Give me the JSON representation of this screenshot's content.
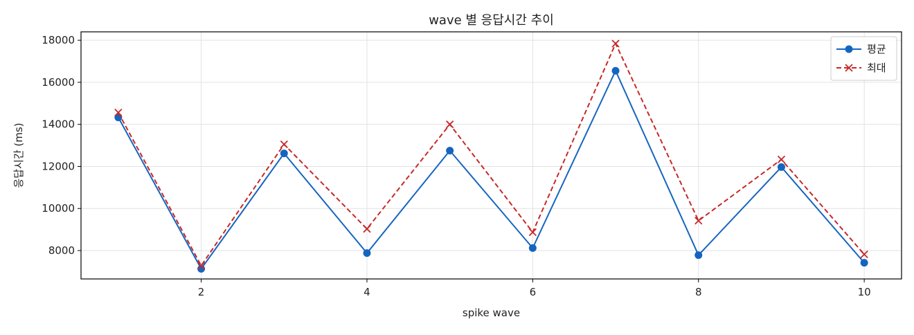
{
  "chart_data": {
    "type": "line",
    "title": "wave 별 응답시간 추이",
    "xlabel": "spike wave",
    "ylabel": "응답시간 (ms)",
    "x": [
      1,
      2,
      3,
      4,
      5,
      6,
      7,
      8,
      9,
      10
    ],
    "xlim": [
      0.55,
      10.45
    ],
    "ylim": [
      6650,
      18400
    ],
    "xticks": [
      2,
      4,
      6,
      8,
      10
    ],
    "yticks": [
      8000,
      10000,
      12000,
      14000,
      16000,
      18000
    ],
    "grid": true,
    "legend_position": "top-right",
    "series": [
      {
        "name": "평균",
        "marker": "circle",
        "line_style": "solid",
        "color": "#1565c0",
        "values": [
          14330,
          7130,
          12620,
          7880,
          12750,
          8120,
          16550,
          7780,
          11970,
          7420
        ]
      },
      {
        "name": "최대",
        "marker": "x",
        "line_style": "dashed",
        "color": "#c62828",
        "values": [
          14560,
          7280,
          13050,
          9030,
          14000,
          8870,
          17840,
          9420,
          12330,
          7820
        ]
      }
    ]
  }
}
